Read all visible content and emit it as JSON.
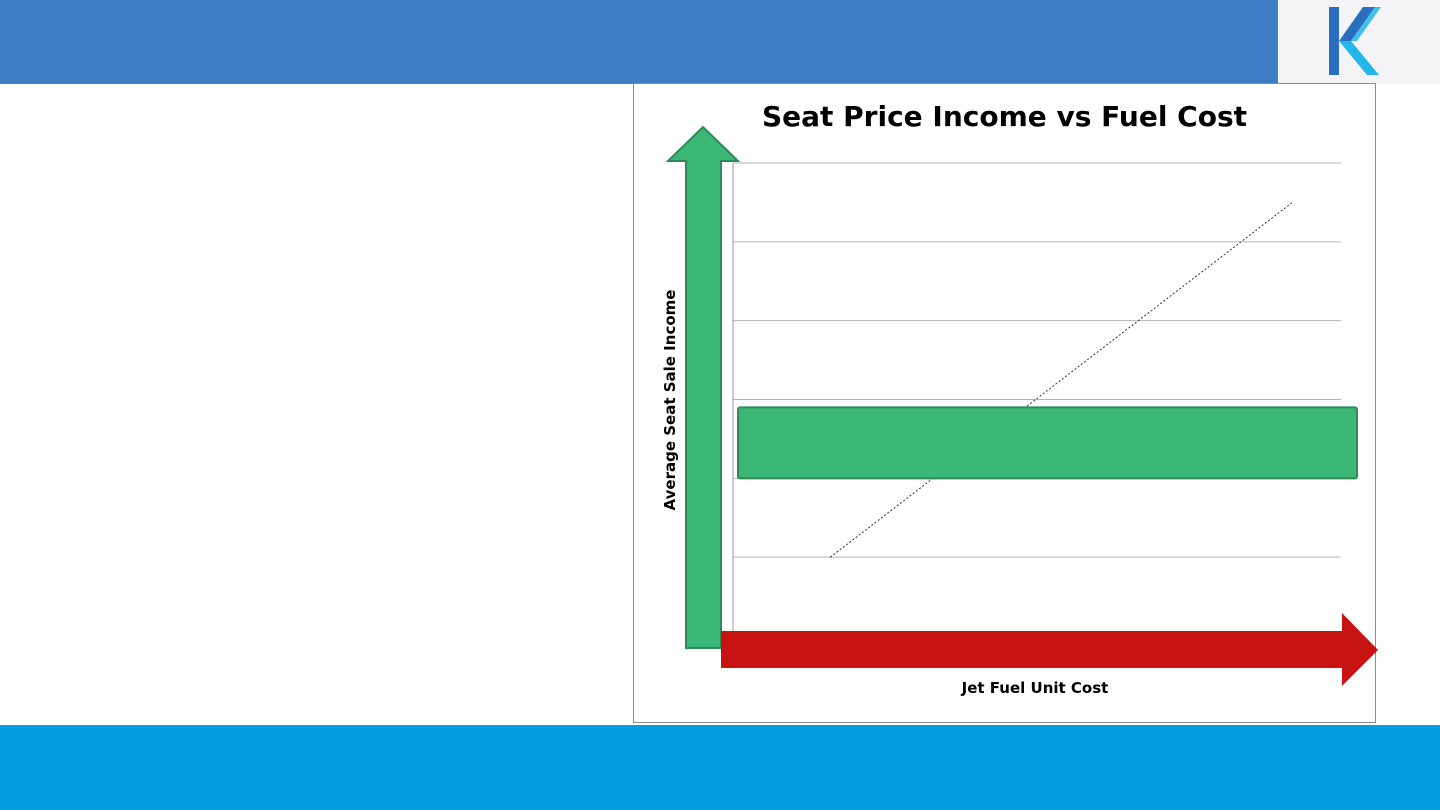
{
  "slide": {
    "header_color": "#3f7dc6",
    "footer_color": "#049fe0",
    "logo": {
      "icon": "k-logo-icon",
      "colors": [
        "#2a6fbf",
        "#22b6ea"
      ]
    }
  },
  "chart_data": {
    "type": "line",
    "title": "Seat Price Income  vs Fuel Cost",
    "xlabel": "Jet Fuel Unit Cost",
    "ylabel": "Average Seat Sale Income",
    "grid": true,
    "horizontal_gridlines": 6,
    "series": [
      {
        "style": "dotted",
        "color": "#333333",
        "x": [
          0.16,
          0.92
        ],
        "y": [
          1.0,
          5.5
        ]
      }
    ],
    "xlim": [
      0,
      1
    ],
    "ylim": [
      0,
      6
    ],
    "annotations": [
      {
        "shape": "horizontal-band",
        "color": "#3bb878",
        "y": [
          2.0,
          2.9
        ]
      },
      {
        "shape": "up-arrow",
        "color": "#3bb878",
        "meaning": "y-axis direction"
      },
      {
        "shape": "right-arrow",
        "color": "#c81313",
        "meaning": "x-axis direction"
      }
    ]
  }
}
